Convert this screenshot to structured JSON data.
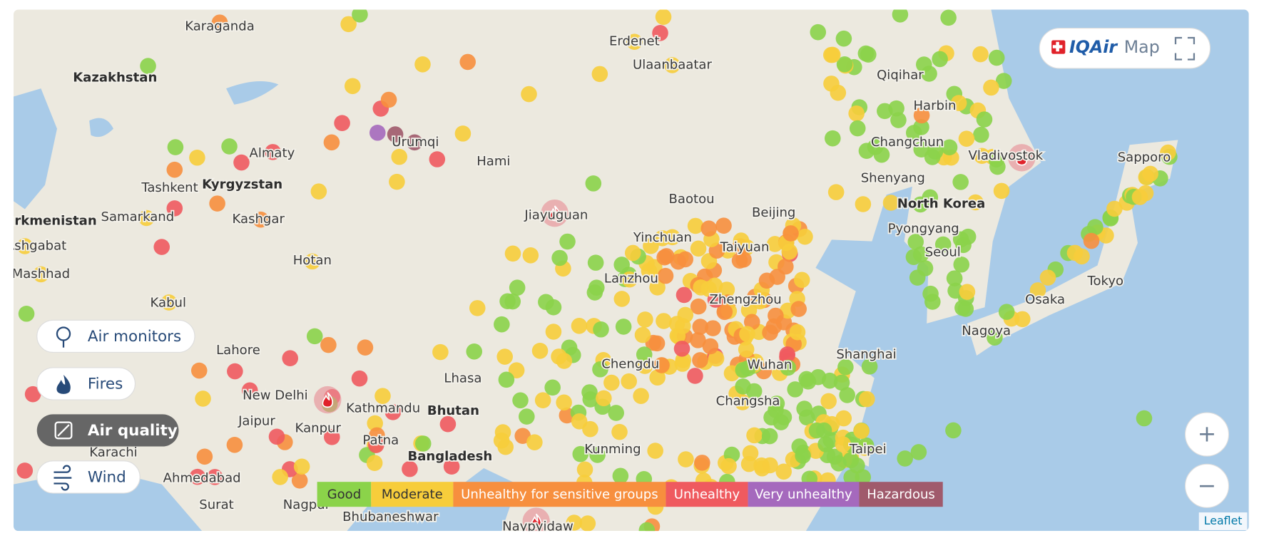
{
  "brand": {
    "logo": "IQAir",
    "suffix": "Map"
  },
  "places": [
    "Karaganda",
    "Kazakhstan",
    "Erdenet",
    "Ulaanbaatar",
    "Qiqihar",
    "Harbin",
    "Changchun",
    "Vladivostok",
    "Sapporo",
    "Almaty",
    "Urumqi",
    "Hami",
    "Tashkent",
    "Kyrgyzstan",
    "Turkmenistan",
    "Samarkand",
    "Kashgar",
    "Ashgabat",
    "Mashhad",
    "Hotan",
    "Kabul",
    "Jiayuguan",
    "Yinchuan",
    "Baotou",
    "Beijing",
    "Shenyang",
    "North Korea",
    "Pyongyang",
    "Seoul",
    "Taiyuan",
    "Lanzhou",
    "Zhengzhou",
    "Chengdu",
    "Wuhan",
    "Shanghai",
    "Changsha",
    "Nagoya",
    "Osaka",
    "Tokyo",
    "Lahore",
    "New Delhi",
    "Jaipur",
    "Kanpur",
    "Kathmandu",
    "Bhutan",
    "Lhasa",
    "Patna",
    "Bangladesh",
    "Karachi",
    "Ahmedabad",
    "Surat",
    "Nagpur",
    "Bhubaneshwar",
    "Naypyidaw",
    "Kunming",
    "Taipei"
  ],
  "layers": [
    "Air monitors",
    "Fires",
    "Air quality",
    "Wind"
  ],
  "legend": [
    {
      "label": "Good",
      "color": "#8bd34a"
    },
    {
      "label": "Moderate",
      "color": "#f7cd3b"
    },
    {
      "label": "Unhealthy for sensitive groups",
      "color": "#f78f3e"
    },
    {
      "label": "Unhealthy",
      "color": "#ef5a5f"
    },
    {
      "label": "Very unhealthy",
      "color": "#a569bd"
    },
    {
      "label": "Hazardous",
      "color": "#a05a6c"
    }
  ],
  "zoom": {
    "in": "+",
    "out": "−"
  },
  "attribution": "Leaflet"
}
